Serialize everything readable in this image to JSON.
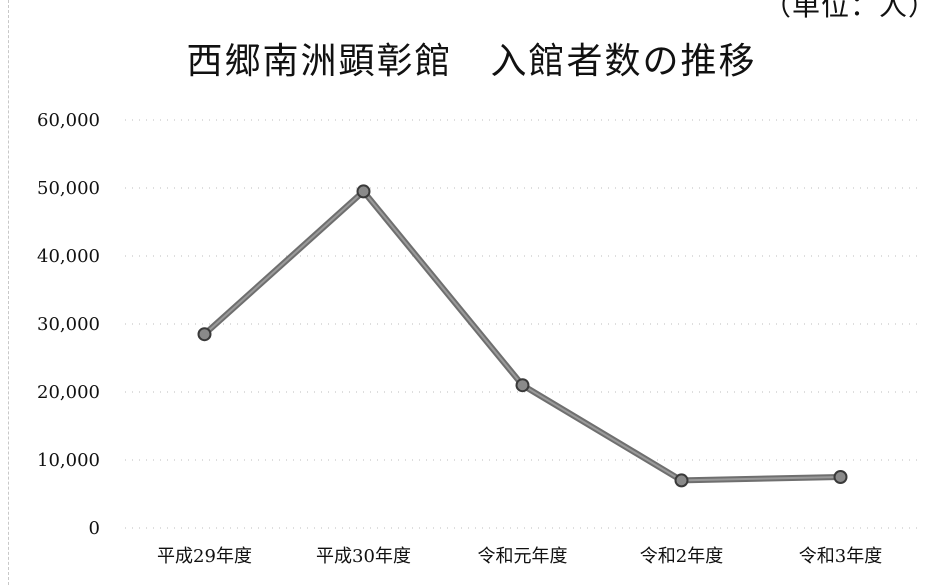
{
  "unit_label": "（単位：人）",
  "chart_data": {
    "type": "line",
    "title": "西郷南洲顕彰館　入館者数の推移",
    "xlabel": "",
    "ylabel": "",
    "categories": [
      "平成29年度",
      "平成30年度",
      "令和元年度",
      "令和2年度",
      "令和3年度"
    ],
    "series": [
      {
        "name": "",
        "values": [
          28500,
          49500,
          21000,
          7000,
          7500
        ]
      }
    ],
    "ylim": [
      0,
      60000
    ],
    "yticks": [
      "0",
      "10,000",
      "20,000",
      "30,000",
      "40,000",
      "50,000",
      "60,000"
    ],
    "grid": true,
    "colors": {
      "line": "#6f6f6f",
      "marker": "#8a8a8a",
      "grid": "#bdbdbd"
    }
  }
}
